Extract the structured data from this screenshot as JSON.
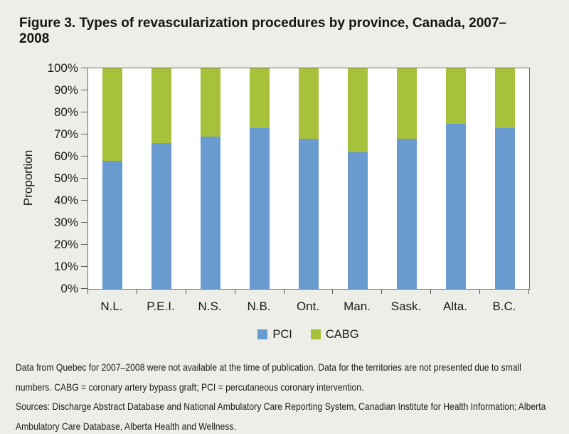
{
  "title": "Figure 3. Types of revascularization procedures by province, Canada, 2007–2008",
  "chart_data": {
    "type": "bar",
    "stacked": true,
    "title": "Figure 3. Types of revascularization procedures by province, Canada, 2007–2008",
    "xlabel": "",
    "ylabel": "Proportion",
    "categories": [
      "N.L.",
      "P.E.I.",
      "N.S.",
      "N.B.",
      "Ont.",
      "Man.",
      "Sask.",
      "Alta.",
      "B.C."
    ],
    "series": [
      {
        "name": "PCI",
        "color": "#699BD1",
        "values": [
          58,
          66,
          69,
          73,
          68,
          62,
          68,
          75,
          73
        ]
      },
      {
        "name": "CABG",
        "color": "#A8C13B",
        "values": [
          42,
          34,
          31,
          27,
          32,
          38,
          32,
          25,
          27
        ]
      }
    ],
    "ylim": [
      0,
      100
    ],
    "y_ticks": [
      "0%",
      "10%",
      "20%",
      "30%",
      "40%",
      "50%",
      "60%",
      "70%",
      "80%",
      "90%",
      "100%"
    ],
    "grid": false,
    "legend_position": "bottom",
    "plot_background": "#FFFFFF"
  },
  "legend": {
    "items": [
      {
        "label": "PCI",
        "color": "#699BD1"
      },
      {
        "label": "CABG",
        "color": "#A8C13B"
      }
    ]
  },
  "footnotes": {
    "lines": [
      "Data from Quebec for 2007–2008 were not available at the time of publication. Data for the territories are not presented due to small",
      "numbers. CABG = coronary artery bypass graft; PCI = percutaneous coronary intervention.",
      "Sources: Discharge Abstract Database and National Ambulatory Care Reporting System, Canadian Institute for Health Information; Alberta",
      "Ambulatory Care Database, Alberta Health and Wellness."
    ]
  },
  "colors": {
    "background": "#EDEEE7",
    "plot_border": "#6E6E6E",
    "axis_tick": "#5A5A5A",
    "text": "#1A1A1A"
  }
}
